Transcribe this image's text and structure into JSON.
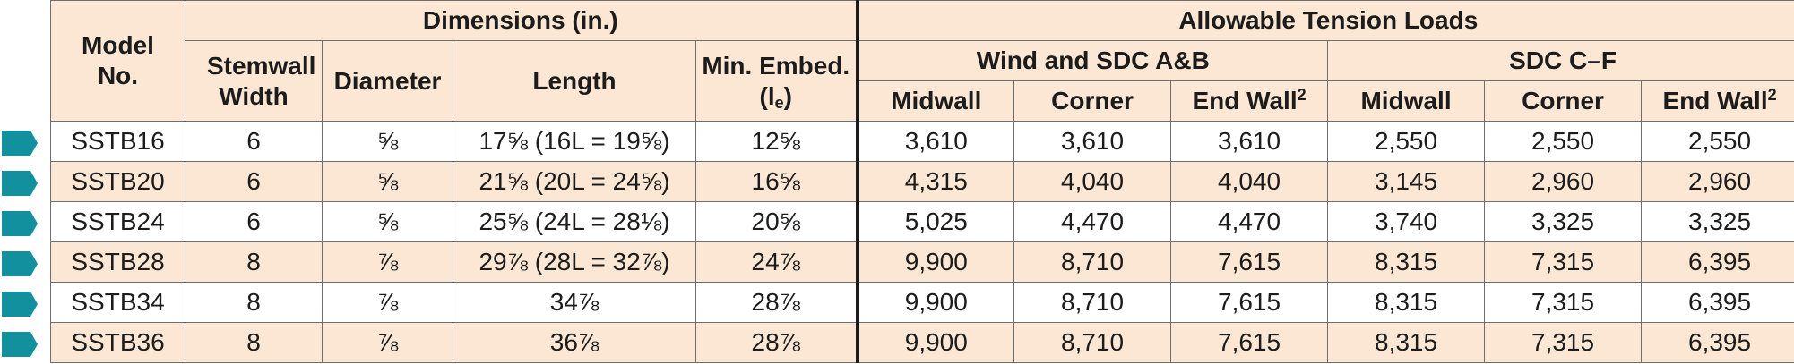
{
  "table": {
    "headers": {
      "model": "Model No.",
      "dimensions": "Dimensions (in.)",
      "tension": "Allowable Tension Loads",
      "wind_group": "Wind and SDC A&B",
      "sdc_group": "SDC C–F",
      "stemwall_width": "Stemwall Width",
      "diameter": "Diameter",
      "length": "Length",
      "min_embed": "Min. Embed.",
      "min_embed_symbol_open": "(l",
      "min_embed_symbol_sub": "e",
      "min_embed_symbol_close": ")",
      "wind_midwall": "Midwall",
      "wind_corner": "Corner",
      "wind_endwall": "End Wall",
      "sdc_midwall": "Midwall",
      "sdc_corner": "Corner",
      "sdc_endwall": "End Wall",
      "endwall_footnote": "2"
    },
    "rows": [
      {
        "model": "SSTB16",
        "stemwall": "6",
        "diameter": "⅝",
        "length": "17⅝ (16L = 19⅝)",
        "embed": "12⅝",
        "wind_mid": "3,610",
        "wind_corner": "3,610",
        "wind_end": "3,610",
        "sdc_mid": "2,550",
        "sdc_corner": "2,550",
        "sdc_end": "2,550"
      },
      {
        "model": "SSTB20",
        "stemwall": "6",
        "diameter": "⅝",
        "length": "21⅝ (20L = 24⅝)",
        "embed": "16⅝",
        "wind_mid": "4,315",
        "wind_corner": "4,040",
        "wind_end": "4,040",
        "sdc_mid": "3,145",
        "sdc_corner": "2,960",
        "sdc_end": "2,960"
      },
      {
        "model": "SSTB24",
        "stemwall": "6",
        "diameter": "⅝",
        "length": "25⅝ (24L = 28⅛)",
        "embed": "20⅝",
        "wind_mid": "5,025",
        "wind_corner": "4,470",
        "wind_end": "4,470",
        "sdc_mid": "3,740",
        "sdc_corner": "3,325",
        "sdc_end": "3,325"
      },
      {
        "model": "SSTB28",
        "stemwall": "8",
        "diameter": "⅞",
        "length": "29⅞ (28L = 32⅞)",
        "embed": "24⅞",
        "wind_mid": "9,900",
        "wind_corner": "8,710",
        "wind_end": "7,615",
        "sdc_mid": "8,315",
        "sdc_corner": "7,315",
        "sdc_end": "6,395"
      },
      {
        "model": "SSTB34",
        "stemwall": "8",
        "diameter": "⅞",
        "length": "34⅞",
        "embed": "28⅞",
        "wind_mid": "9,900",
        "wind_corner": "8,710",
        "wind_end": "7,615",
        "sdc_mid": "8,315",
        "sdc_corner": "7,315",
        "sdc_end": "6,395"
      },
      {
        "model": "SSTB36",
        "stemwall": "8",
        "diameter": "⅞",
        "length": "36⅞",
        "embed": "28⅞",
        "wind_mid": "9,900",
        "wind_corner": "8,710",
        "wind_end": "7,615",
        "sdc_mid": "8,315",
        "sdc_corner": "7,315",
        "sdc_end": "6,395"
      }
    ]
  },
  "row_marker": {
    "icon": "pentagon-arrow-icon",
    "color": "#12909e"
  },
  "colors": {
    "header_bg": "#fbe7d3",
    "alt_row_bg": "#fbe7d3",
    "border": "#6e6e6e",
    "divider": "#1c1c1c"
  }
}
